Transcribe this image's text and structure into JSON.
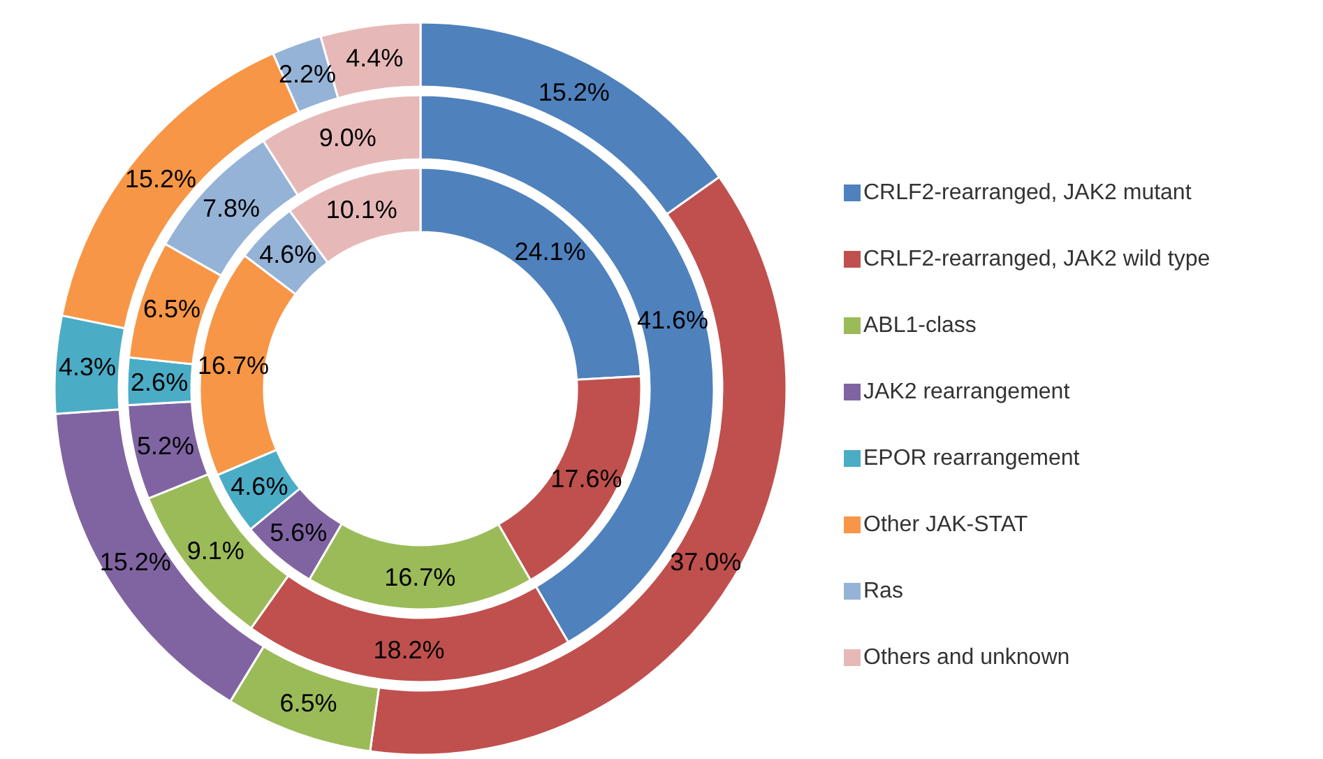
{
  "chart_data": {
    "type": "donut",
    "categories": [
      "CRLF2-rearranged, JAK2 mutant",
      "CRLF2-rearranged, JAK2 wild type",
      "ABL1-class",
      "JAK2 rearrangement",
      "EPOR rearrangement",
      "Other JAK-STAT",
      "Ras",
      "Others and unknown"
    ],
    "colors": [
      "#4f81bd",
      "#c0504d",
      "#9bbb59",
      "#8064a2",
      "#4bacc6",
      "#f79646",
      "#95b3d7",
      "#e6b9b8"
    ],
    "legend": "right",
    "series": [
      {
        "values": [
          24.1,
          17.6,
          16.7,
          5.6,
          4.6,
          16.7,
          4.6,
          10.1
        ],
        "value_labels": [
          "24.1%",
          "17.6%",
          "16.7%",
          "5.6%",
          "4.6%",
          "16.7%",
          "4.6%",
          "10.1%"
        ]
      },
      {
        "values": [
          41.6,
          18.2,
          9.1,
          5.2,
          2.6,
          6.5,
          7.8,
          9.0
        ],
        "value_labels": [
          "41.6%",
          "18.2%",
          "9.1%",
          "5.2%",
          "2.6%",
          "6.5%",
          "7.8%",
          "9.0%"
        ]
      },
      {
        "values": [
          15.2,
          37.0,
          6.5,
          15.2,
          4.3,
          15.2,
          2.2,
          4.4
        ],
        "value_labels": [
          "15.2%",
          "37.0%",
          "6.5%",
          "15.2%",
          "4.3%",
          "15.2%",
          "2.2%",
          "4.4%"
        ]
      }
    ]
  }
}
